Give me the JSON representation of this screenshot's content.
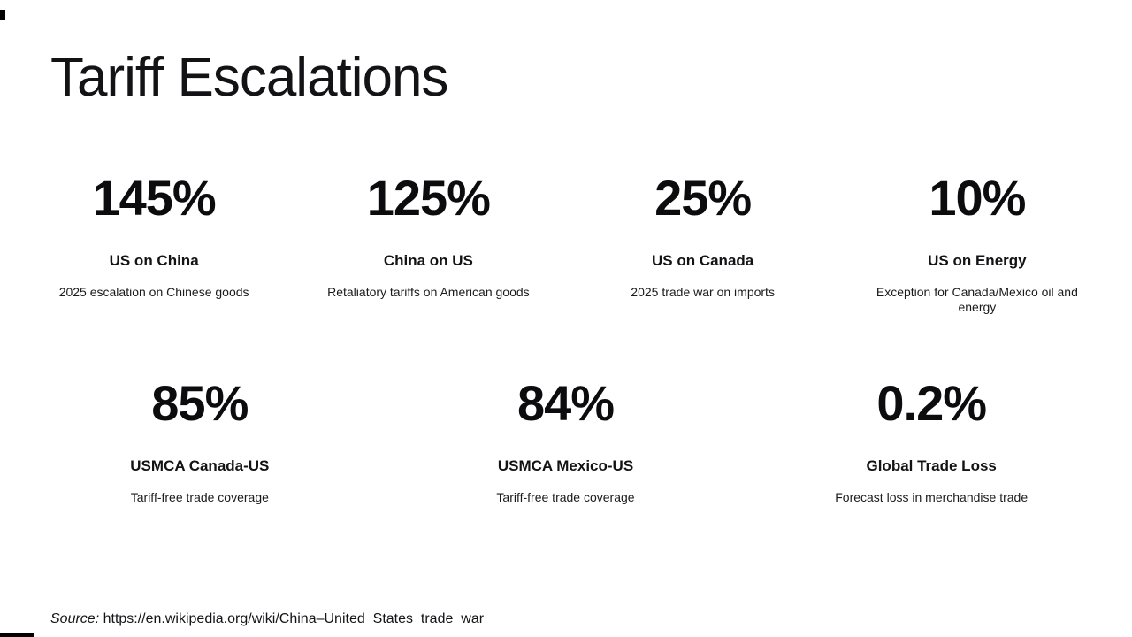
{
  "slide": {
    "title": "Tariff Escalations",
    "source_label": "Source:",
    "source_url": "https://en.wikipedia.org/wiki/China–United_States_trade_war"
  },
  "stats_row1": [
    {
      "value": "145%",
      "label": "US on China",
      "description": "2025 escalation on Chinese goods"
    },
    {
      "value": "125%",
      "label": "China on US",
      "description": "Retaliatory tariffs on American goods"
    },
    {
      "value": "25%",
      "label": "US on Canada",
      "description": "2025 trade war on imports"
    },
    {
      "value": "10%",
      "label": "US on Energy",
      "description": "Exception for Canada/Mexico oil and energy"
    }
  ],
  "stats_row2": [
    {
      "value": "85%",
      "label": "USMCA Canada-US",
      "description": "Tariff-free trade coverage"
    },
    {
      "value": "84%",
      "label": "USMCA Mexico-US",
      "description": "Tariff-free trade coverage"
    },
    {
      "value": "0.2%",
      "label": "Global Trade Loss",
      "description": "Forecast loss in merchandise trade"
    }
  ],
  "colors": {
    "background": "#ffffff",
    "text": "#131316",
    "edge_marks": "#000000"
  }
}
